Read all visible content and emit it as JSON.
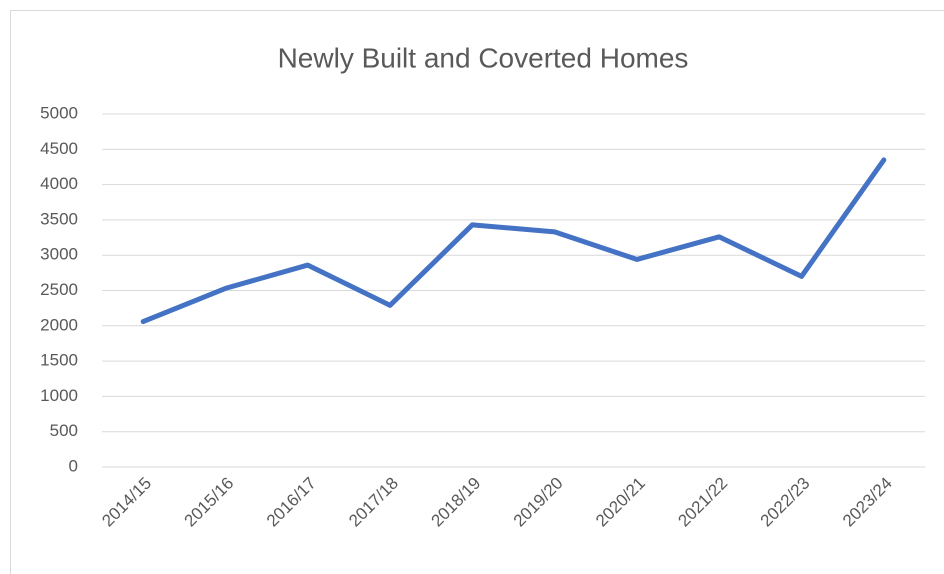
{
  "chart_data": {
    "type": "line",
    "title": "Newly Built and Coverted Homes",
    "categories": [
      "2014/15",
      "2015/16",
      "2016/17",
      "2017/18",
      "2018/19",
      "2019/20",
      "2020/21",
      "2021/22",
      "2022/23",
      "2023/24"
    ],
    "values": [
      2060,
      2530,
      2860,
      2290,
      3430,
      3330,
      2940,
      3260,
      2700,
      4350
    ],
    "color": "#4472c4",
    "ylim": [
      0,
      5000
    ],
    "yticks": [
      0,
      500,
      1000,
      1500,
      2000,
      2500,
      3000,
      3500,
      4000,
      4500,
      5000
    ],
    "grid": true
  }
}
